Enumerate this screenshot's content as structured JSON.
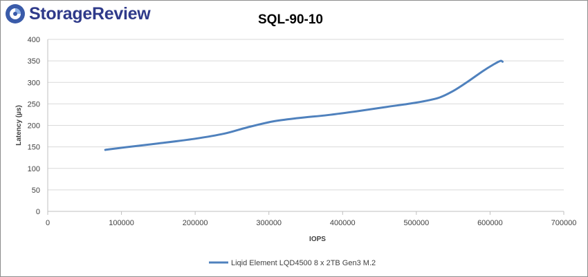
{
  "brand": {
    "name": "StorageReview",
    "logo_icon": "storagereview-logo-icon",
    "color": "#2f3a8a"
  },
  "chart_data": {
    "type": "line",
    "title": "SQL-90-10",
    "xlabel": "IOPS",
    "ylabel": "Latency (µs)",
    "xlim": [
      0,
      700000
    ],
    "ylim": [
      0,
      400
    ],
    "x_ticks": [
      0,
      100000,
      200000,
      300000,
      400000,
      500000,
      600000,
      700000
    ],
    "y_ticks": [
      0,
      50,
      100,
      150,
      200,
      250,
      300,
      350,
      400
    ],
    "grid": "horizontal",
    "legend_position": "bottom",
    "series": [
      {
        "name": "Liqid Element LQD4500 8 x 2TB Gen3 M.2",
        "color": "#4f81bd",
        "x": [
          78000,
          105000,
          150000,
          200000,
          240000,
          270000,
          305000,
          340000,
          380000,
          420000,
          460000,
          500000,
          530000,
          550000,
          570000,
          590000,
          605000,
          614000,
          617000
        ],
        "y": [
          143,
          149,
          158,
          169,
          181,
          195,
          209,
          217,
          224,
          233,
          243,
          253,
          264,
          280,
          302,
          326,
          342,
          350,
          348
        ]
      }
    ]
  }
}
